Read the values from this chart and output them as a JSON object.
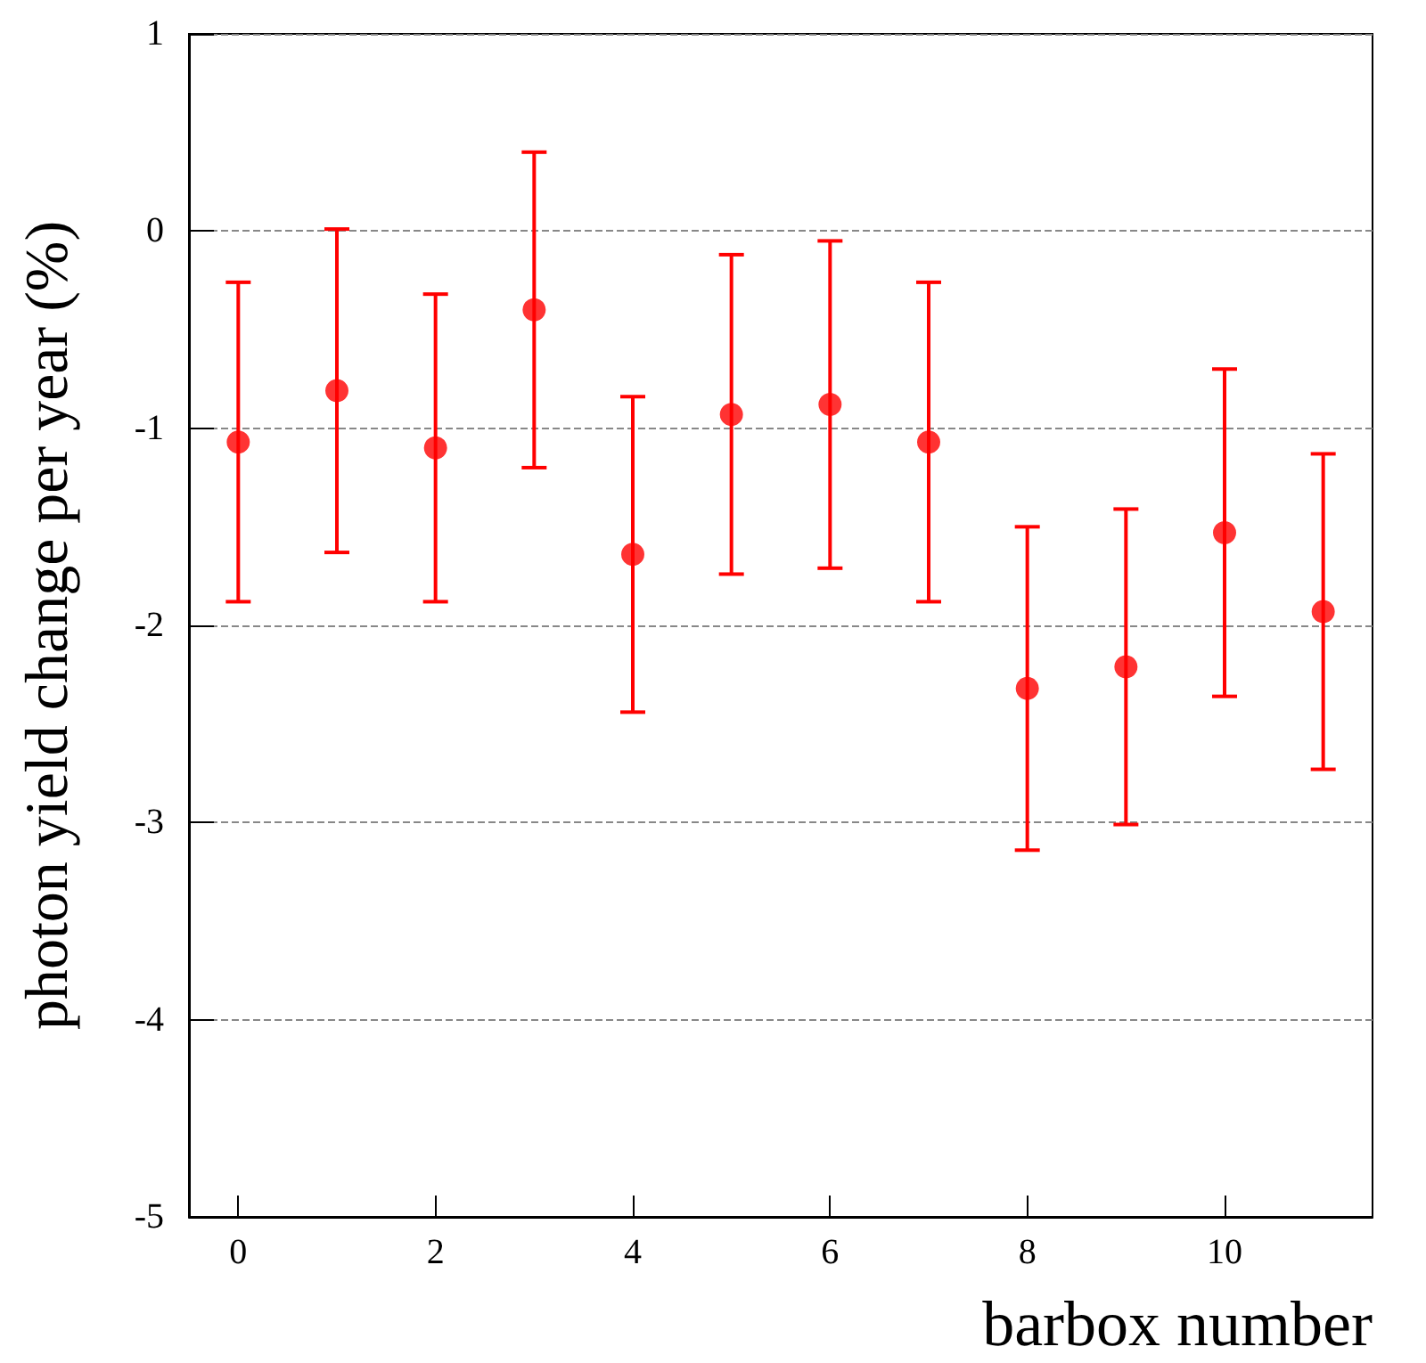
{
  "chart_data": {
    "type": "scatter",
    "xlabel": "barbox number",
    "ylabel": "photon yield change per year (%)",
    "x": [
      0,
      1,
      2,
      3,
      4,
      5,
      6,
      7,
      8,
      9,
      10,
      11
    ],
    "series": [
      {
        "color": "#ff0000",
        "values": [
          -1.07,
          -0.81,
          -1.1,
          -0.4,
          -1.64,
          -0.93,
          -0.88,
          -1.07,
          -2.32,
          -2.21,
          -1.53,
          -1.93
        ],
        "errors": [
          0.81,
          0.82,
          0.78,
          0.8,
          0.8,
          0.81,
          0.83,
          0.81,
          0.82,
          0.8,
          0.83,
          0.8
        ]
      }
    ],
    "xlim": [
      -0.5,
      11.5
    ],
    "xticks": [
      0,
      2,
      4,
      6,
      8,
      10
    ],
    "ylim": [
      -5,
      1
    ],
    "yticks": [
      -5,
      -4,
      -3,
      -2,
      -1,
      0,
      1
    ],
    "grid": "y",
    "marker": "circle"
  }
}
